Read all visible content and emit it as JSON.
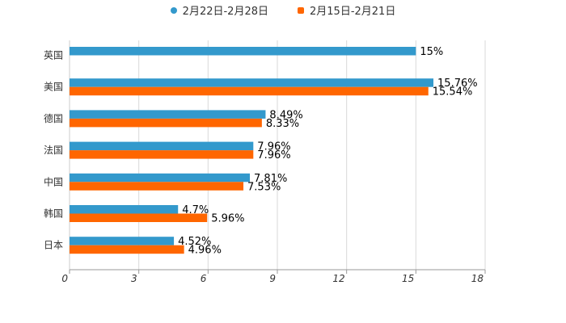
{
  "chart_data": {
    "type": "bar",
    "orientation": "horizontal",
    "categories": [
      "英国",
      "美国",
      "德国",
      "法国",
      "中国",
      "韩国",
      "日本"
    ],
    "series": [
      {
        "name": "2月22日-2月28日",
        "color": "#3399cc",
        "values": [
          15,
          15.76,
          8.49,
          7.96,
          7.81,
          4.7,
          4.52
        ],
        "labels": [
          "15%",
          "15.76%",
          "8.49%",
          "7.96%",
          "7.81%",
          "4.7%",
          "4.52%"
        ]
      },
      {
        "name": "2月15日-2月21日",
        "color": "#ff6600",
        "values": [
          null,
          15.54,
          8.33,
          7.96,
          7.53,
          5.96,
          4.96
        ],
        "labels": [
          "",
          "15.54%",
          "8.33%",
          "7.96%",
          "7.53%",
          "5.96%",
          "4.96%"
        ]
      }
    ],
    "xlim": [
      0,
      18
    ],
    "xticks": [
      0,
      3,
      6,
      9,
      12,
      15,
      18
    ],
    "xtick_labels": [
      "0",
      "3",
      "6",
      "9",
      "12",
      "15",
      "18"
    ],
    "grid": true,
    "legend_position": "top-center",
    "title": "",
    "xlabel": "",
    "ylabel": ""
  }
}
